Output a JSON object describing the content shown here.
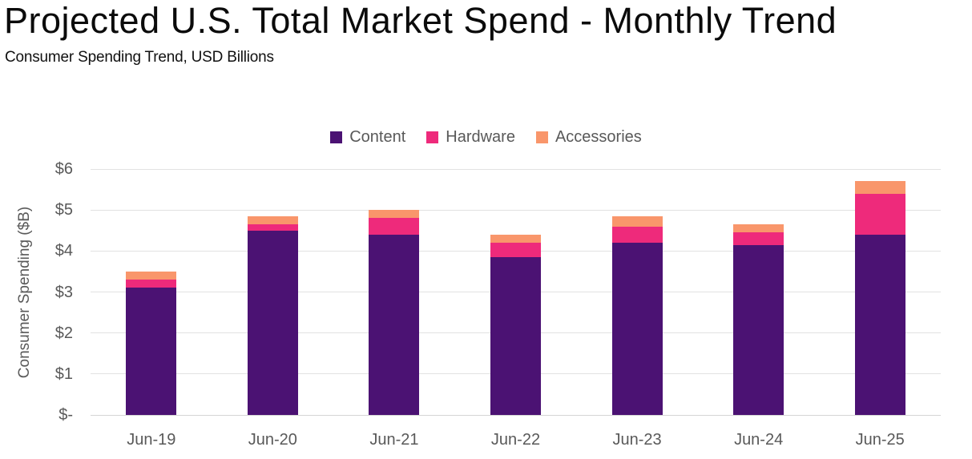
{
  "title": "Projected U.S. Total Market Spend - Monthly Trend",
  "subtitle": "Consumer Spending Trend, USD Billions",
  "chart_data": {
    "type": "bar",
    "stacked": true,
    "title": "Projected U.S. Total Market Spend - Monthly Trend",
    "subtitle": "Consumer Spending Trend, USD Billions",
    "categories": [
      "Jun-19",
      "Jun-20",
      "Jun-21",
      "Jun-22",
      "Jun-23",
      "Jun-24",
      "Jun-25"
    ],
    "series": [
      {
        "name": "Content",
        "color": "#4b1273",
        "values": [
          3.1,
          4.5,
          4.4,
          3.85,
          4.2,
          4.15,
          4.4
        ]
      },
      {
        "name": "Hardware",
        "color": "#ee2a7b",
        "values": [
          0.2,
          0.15,
          0.4,
          0.35,
          0.4,
          0.3,
          1.0
        ]
      },
      {
        "name": "Accessories",
        "color": "#f9966b",
        "values": [
          0.2,
          0.2,
          0.2,
          0.2,
          0.25,
          0.2,
          0.3
        ]
      }
    ],
    "totals": [
      3.5,
      4.85,
      5.0,
      4.4,
      4.85,
      4.65,
      5.7
    ],
    "xlabel": "",
    "ylabel": "Consumer Spending ($B)",
    "ylim": [
      0,
      6
    ],
    "yticks": [
      {
        "value": 0,
        "label": "$-"
      },
      {
        "value": 1,
        "label": "$1"
      },
      {
        "value": 2,
        "label": "$2"
      },
      {
        "value": 3,
        "label": "$3"
      },
      {
        "value": 4,
        "label": "$4"
      },
      {
        "value": 5,
        "label": "$5"
      },
      {
        "value": 6,
        "label": "$6"
      }
    ],
    "grid": true,
    "legend_position": "top-center"
  },
  "colors": {
    "grid": "#e2e2e2",
    "baseline": "#d5d5d5",
    "axis_text": "#595959",
    "title_text": "#0b0b0b"
  }
}
